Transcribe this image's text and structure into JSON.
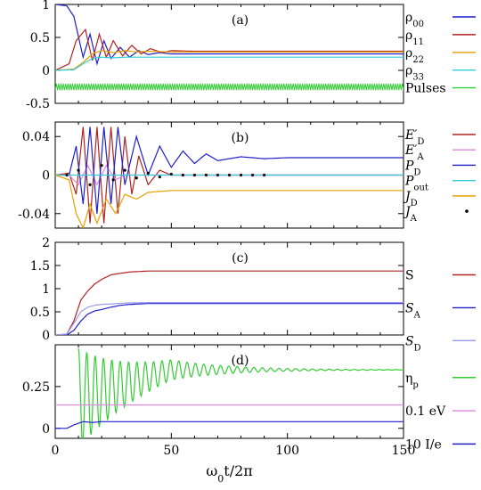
{
  "chart_data": [
    {
      "type": "line",
      "panel_label": "(a)",
      "xlim": [
        0,
        150
      ],
      "ylim": [
        -0.5,
        1.0
      ],
      "yticks": [
        -0.5,
        0,
        0.5,
        1
      ],
      "ytick_labels": [
        "-0.5",
        "0",
        "0.5",
        "1"
      ],
      "legend_placement": "right",
      "series": [
        {
          "name": "ρ00",
          "color": "#1f1fcc",
          "x": [
            0,
            5,
            8,
            12,
            15,
            18,
            21,
            24,
            28,
            32,
            36,
            40,
            45,
            50,
            60,
            80,
            150
          ],
          "y": [
            1.0,
            0.98,
            0.82,
            0.2,
            0.55,
            0.1,
            0.45,
            0.18,
            0.35,
            0.2,
            0.3,
            0.24,
            0.27,
            0.25,
            0.25,
            0.25,
            0.25
          ]
        },
        {
          "name": "ρ11",
          "color": "#b22222",
          "x": [
            0,
            6,
            9,
            13,
            16,
            19,
            22,
            25,
            29,
            33,
            37,
            41,
            46,
            50,
            60,
            80,
            150
          ],
          "y": [
            0.0,
            0.1,
            0.45,
            0.62,
            0.15,
            0.55,
            0.2,
            0.45,
            0.22,
            0.38,
            0.25,
            0.33,
            0.27,
            0.3,
            0.29,
            0.29,
            0.29
          ]
        },
        {
          "name": "ρ22",
          "color": "#e8a000",
          "x": [
            0,
            8,
            12,
            16,
            20,
            25,
            30,
            35,
            40,
            50,
            60,
            150
          ],
          "y": [
            0.0,
            0.02,
            0.12,
            0.25,
            0.3,
            0.27,
            0.3,
            0.28,
            0.29,
            0.28,
            0.28,
            0.28
          ]
        },
        {
          "name": "ρ33",
          "color": "#33ccdd",
          "x": [
            0,
            8,
            12,
            16,
            20,
            25,
            30,
            40,
            50,
            150
          ],
          "y": [
            0.0,
            0.01,
            0.1,
            0.18,
            0.2,
            0.19,
            0.2,
            0.2,
            0.2,
            0.2
          ]
        },
        {
          "name": "Pulses",
          "color": "#33cc33",
          "x": [
            0,
            150
          ],
          "y": [
            -0.25,
            -0.25
          ],
          "oscillation_amplitude": 0.1
        }
      ]
    },
    {
      "type": "line",
      "panel_label": "(b)",
      "xlim": [
        0,
        150
      ],
      "ylim": [
        -0.055,
        0.055
      ],
      "yticks": [
        -0.04,
        0,
        0.04
      ],
      "ytick_labels": [
        "-0.04",
        "0",
        "0.04"
      ],
      "legend_placement": "right",
      "series": [
        {
          "name": "E′D",
          "color": "#b22222",
          "x": [
            0,
            6,
            9,
            12,
            15,
            18,
            21,
            24,
            27,
            30,
            33,
            36,
            40,
            45,
            50,
            150
          ],
          "y": [
            0.0,
            0.002,
            -0.02,
            0.05,
            -0.05,
            0.05,
            -0.05,
            0.05,
            -0.04,
            0.04,
            -0.02,
            0.02,
            -0.01,
            0.005,
            0.0,
            0.0
          ]
        },
        {
          "name": "E′A",
          "color": "#dd88dd",
          "x": [
            0,
            6,
            10,
            14,
            18,
            22,
            26,
            30,
            150
          ],
          "y": [
            0.0,
            0.0,
            -0.01,
            0.01,
            -0.01,
            0.01,
            -0.005,
            0.0,
            0.0
          ]
        },
        {
          "name": "PD",
          "color": "#1f1fcc",
          "x": [
            0,
            6,
            9,
            12,
            15,
            18,
            21,
            24,
            27,
            30,
            35,
            40,
            45,
            50,
            55,
            60,
            65,
            70,
            80,
            90,
            100,
            150
          ],
          "y": [
            0.0,
            0.0,
            0.03,
            -0.03,
            0.05,
            -0.04,
            0.05,
            -0.03,
            0.05,
            -0.01,
            0.04,
            0.0,
            0.03,
            0.008,
            0.025,
            0.012,
            0.022,
            0.015,
            0.019,
            0.017,
            0.018,
            0.018
          ]
        },
        {
          "name": "Pout",
          "color": "#33ccdd",
          "x": [
            0,
            150
          ],
          "y": [
            0.0,
            0.0
          ]
        },
        {
          "name": "JD",
          "color": "#e8a000",
          "x": [
            0,
            6,
            9,
            12,
            15,
            18,
            22,
            26,
            30,
            35,
            40,
            50,
            60,
            150
          ],
          "y": [
            0.0,
            -0.005,
            -0.04,
            -0.055,
            -0.03,
            -0.05,
            -0.025,
            -0.04,
            -0.02,
            -0.025,
            -0.018,
            -0.016,
            -0.016,
            -0.016
          ]
        },
        {
          "name": "JA",
          "color": "#000000",
          "style": "dots",
          "x": [
            5,
            10,
            15,
            20,
            25,
            30,
            35,
            40,
            45,
            50,
            55,
            60,
            65,
            70,
            75,
            80,
            85,
            90
          ],
          "y": [
            0.0,
            0.005,
            -0.01,
            0.01,
            -0.005,
            0.005,
            -0.003,
            0.002,
            -0.002,
            0.001,
            0.0,
            0.0,
            0.0,
            0.0,
            0.0,
            0.0,
            0.0,
            0.0
          ]
        }
      ]
    },
    {
      "type": "line",
      "panel_label": "(c)",
      "xlim": [
        0,
        150
      ],
      "ylim": [
        0,
        2
      ],
      "yticks": [
        0,
        0.5,
        1,
        1.5,
        2
      ],
      "ytick_labels": [
        "0",
        "0.5",
        "1",
        "1.5",
        "2"
      ],
      "legend_placement": "right",
      "series": [
        {
          "name": "S",
          "color": "#b22222",
          "x": [
            0,
            5,
            8,
            11,
            14,
            17,
            20,
            24,
            28,
            32,
            36,
            40,
            50,
            60,
            150
          ],
          "y": [
            0.0,
            0.02,
            0.3,
            0.75,
            0.95,
            1.1,
            1.2,
            1.3,
            1.33,
            1.36,
            1.37,
            1.38,
            1.38,
            1.38,
            1.38
          ]
        },
        {
          "name": "SA",
          "color": "#1f1fcc",
          "x": [
            0,
            5,
            8,
            11,
            14,
            17,
            20,
            24,
            28,
            32,
            36,
            40,
            50,
            60,
            150
          ],
          "y": [
            0.0,
            0.0,
            0.1,
            0.3,
            0.45,
            0.52,
            0.55,
            0.6,
            0.64,
            0.66,
            0.67,
            0.68,
            0.68,
            0.68,
            0.68
          ]
        },
        {
          "name": "SD",
          "color": "#9999ee",
          "x": [
            0,
            5,
            8,
            11,
            14,
            17,
            20,
            24,
            30,
            40,
            150
          ],
          "y": [
            0.0,
            0.02,
            0.25,
            0.5,
            0.6,
            0.64,
            0.66,
            0.67,
            0.69,
            0.7,
            0.7
          ]
        }
      ]
    },
    {
      "type": "line",
      "panel_label": "(d)",
      "xlim": [
        0,
        150
      ],
      "ylim": [
        -0.06,
        0.5
      ],
      "yticks": [
        0,
        0.25
      ],
      "ytick_labels": [
        "0",
        "0.25"
      ],
      "legend_placement": "right",
      "series": [
        {
          "name": "ηp",
          "color": "#33cc33",
          "style": "damped",
          "x": [
            10,
            150
          ],
          "y": [
            0.18,
            0.35
          ],
          "oscillation_amplitude": 0.3,
          "decay_length": 25
        },
        {
          "name": "0.1 eV",
          "color": "#dd88dd",
          "x": [
            0,
            150
          ],
          "y": [
            0.14,
            0.14
          ]
        },
        {
          "name": "10 I/e",
          "color": "#1f1fcc",
          "x": [
            0,
            5,
            8,
            12,
            16,
            20,
            30,
            150
          ],
          "y": [
            0.0,
            0.0,
            0.02,
            0.04,
            0.035,
            0.04,
            0.04,
            0.04
          ]
        }
      ]
    }
  ],
  "xaxis": {
    "ticks": [
      0,
      50,
      100,
      150
    ],
    "tick_labels": [
      "0",
      "50",
      "100",
      "150"
    ],
    "label": "ω0t/2π"
  }
}
